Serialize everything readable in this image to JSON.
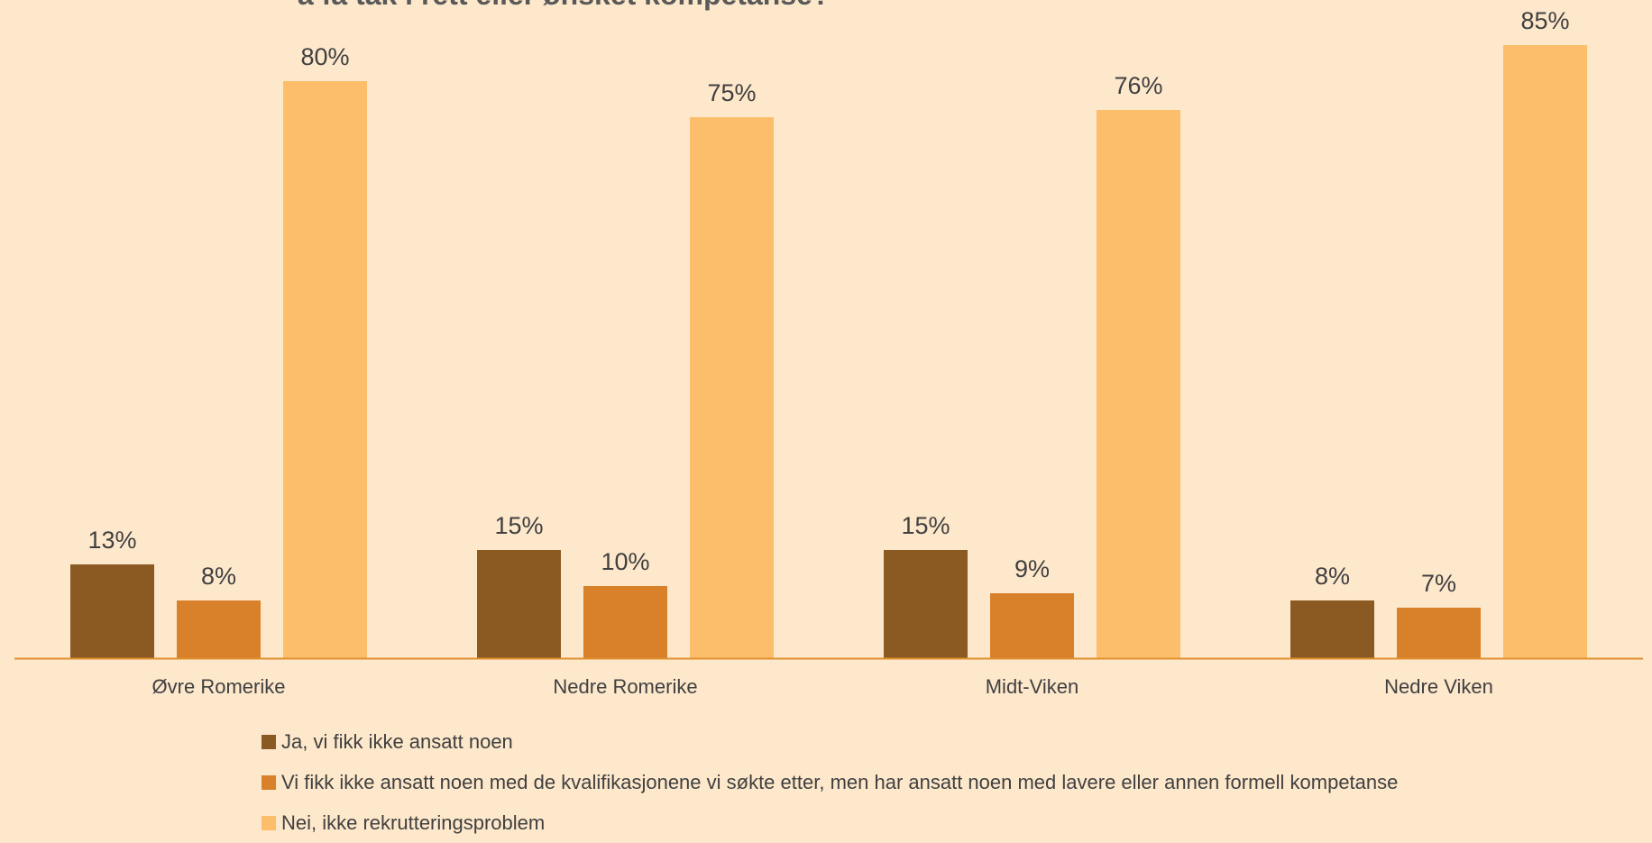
{
  "chart_data": {
    "type": "bar",
    "title": "å få tak i rett eller ønsket kompetanse?",
    "categories": [
      "Øvre Romerike",
      "Nedre Romerike",
      "Midt-Viken",
      "Nedre Viken"
    ],
    "series": [
      {
        "name": "Ja, vi fikk ikke ansatt noen",
        "color": "#8B5A23",
        "values": [
          13,
          15,
          15,
          8
        ],
        "labels": [
          "13%",
          "15%",
          "15%",
          "8%"
        ]
      },
      {
        "name": "Vi fikk ikke ansatt noen med de kvalifikasjonene vi søkte etter, men har ansatt noen med lavere eller annen formell kompetanse",
        "color": "#D9802A",
        "values": [
          8,
          10,
          9,
          7
        ],
        "labels": [
          "8%",
          "10%",
          "9%",
          "7%"
        ]
      },
      {
        "name": "Nei, ikke rekrutteringsproblem",
        "color": "#FCBE6A",
        "values": [
          80,
          75,
          76,
          85
        ],
        "labels": [
          "80%",
          "75%",
          "76%",
          "85%"
        ]
      }
    ],
    "ylim": [
      0,
      85
    ],
    "axis_color": "#E0902E",
    "grid": false,
    "legend_position": "bottom"
  }
}
